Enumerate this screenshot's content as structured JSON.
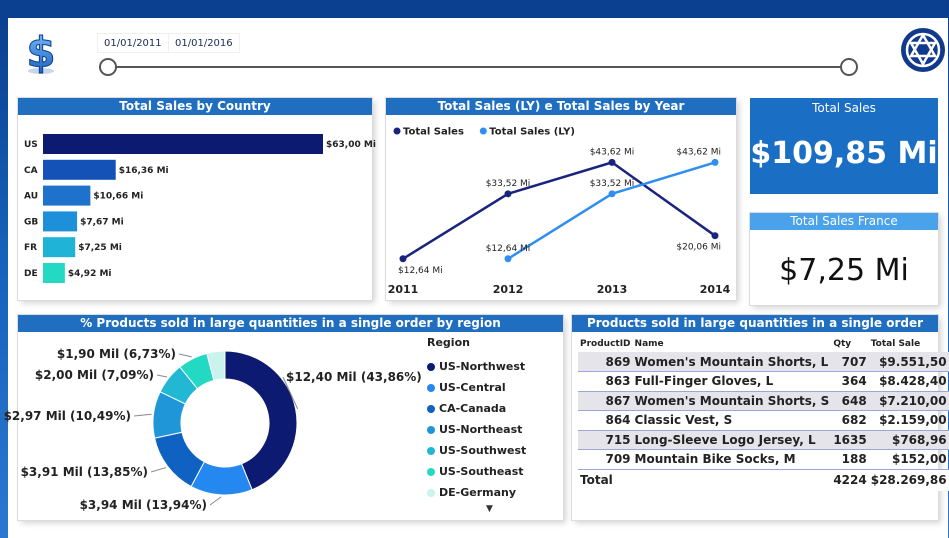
{
  "header": {
    "date_start": "01/01/2011",
    "date_end": "01/01/2016",
    "logo_icon": "dollar-icon",
    "brand_icon": "star-emblem-icon"
  },
  "colors": {
    "navy": "#0d1a72",
    "blue": "#1f6ec0",
    "light_blue": "#2f8ef0",
    "title_bg": "#1f6ec0",
    "cyan": "#1fc3d6",
    "teal": "#23d9c3"
  },
  "kpi": {
    "total_sales_label": "Total Sales",
    "total_sales_value": "$109,85 Mi",
    "france_label": "Total Sales France",
    "france_value": "$7,25 Mi"
  },
  "chart_data": [
    {
      "type": "bar",
      "orientation": "horizontal",
      "title": "Total Sales by Country",
      "categories": [
        "US",
        "CA",
        "AU",
        "GB",
        "FR",
        "DE"
      ],
      "values": [
        63.0,
        16.36,
        10.66,
        7.67,
        7.25,
        4.92
      ],
      "labels": [
        "$63,00 Mi",
        "$16,36 Mi",
        "$10,66 Mi",
        "$7,67 Mi",
        "$7,25 Mi",
        "$4,92 Mi"
      ],
      "colors": [
        "#0d1a72",
        "#1552b8",
        "#1f72cc",
        "#1e90da",
        "#1fb3d8",
        "#23d9c3"
      ],
      "xlim": [
        0,
        63
      ]
    },
    {
      "type": "line",
      "title": "Total Sales (LY) e Total Sales by Year",
      "categories": [
        "2011",
        "2012",
        "2013",
        "2014"
      ],
      "series": [
        {
          "name": "Total Sales",
          "color": "#1a237e",
          "values": [
            12.64,
            33.52,
            43.62,
            20.06
          ],
          "labels": [
            "$12,64 Mi",
            "$33,52 Mi",
            "$43,62 Mi",
            "$20,06 Mi"
          ]
        },
        {
          "name": "Total Sales (LY)",
          "color": "#2f8ef0",
          "values": [
            null,
            12.64,
            33.52,
            43.62
          ],
          "labels": [
            "",
            "$12,64 Mi",
            "$33,52 Mi",
            "$43,62 Mi"
          ]
        }
      ],
      "ylim": [
        10,
        46
      ]
    },
    {
      "type": "pie",
      "variant": "donut",
      "title": "% Products sold in large quantities in a single order by region",
      "legend_title": "Region",
      "categories": [
        "US-Northwest",
        "US-Central",
        "CA-Canada",
        "US-Northeast",
        "US-Southwest",
        "US-Southeast",
        "DE-Germany"
      ],
      "values": [
        12.4,
        3.94,
        3.91,
        2.97,
        2.0,
        1.9,
        1.15
      ],
      "colors": [
        "#0d1a72",
        "#2488f0",
        "#0f62c2",
        "#1e96d8",
        "#22b8d4",
        "#23d9c3",
        "#c9f3ec"
      ],
      "labels": [
        "$12,40 Mil (43,86%)",
        "$3,94 Mil (13,94%)",
        "$3,91 Mil (13,85%)",
        "$2,97 Mil (10,49%)",
        "$2,00 Mil (7,09%)",
        "$1,90 Mil (6,73%)",
        ""
      ]
    },
    {
      "type": "table",
      "title": "Products sold in large quantities in a single order",
      "columns": [
        "ProductID",
        "Name",
        "Qty",
        "Total Sale"
      ],
      "rows": [
        [
          "869",
          "Women's Mountain Shorts, L",
          "707",
          "$9.551,50"
        ],
        [
          "863",
          "Full-Finger Gloves, L",
          "364",
          "$8.428,40"
        ],
        [
          "867",
          "Women's Mountain Shorts, S",
          "648",
          "$7.210,00"
        ],
        [
          "864",
          "Classic Vest, S",
          "682",
          "$2.159,00"
        ],
        [
          "715",
          "Long-Sleeve Logo Jersey, L",
          "1635",
          "$768,96"
        ],
        [
          "709",
          "Mountain Bike Socks, M",
          "188",
          "$152,00"
        ]
      ],
      "total": {
        "label": "Total",
        "qty": "4224",
        "sale": "$28.269,86"
      }
    }
  ]
}
